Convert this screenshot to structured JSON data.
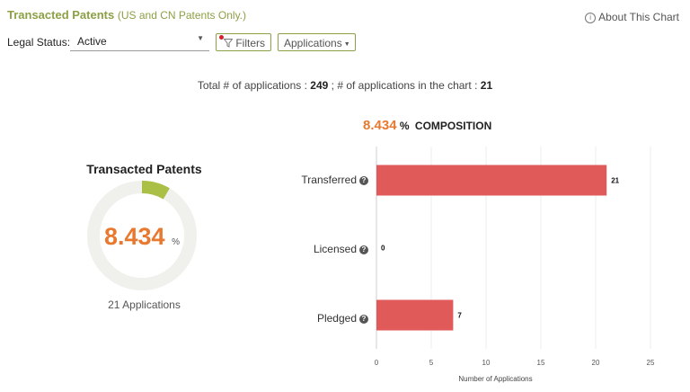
{
  "header": {
    "title": "Transacted Patents",
    "subtitle": "(US and CN Patents Only.)",
    "about_label": "About This Chart",
    "about_icon": "info-circle-icon"
  },
  "filters": {
    "legal_status_label": "Legal Status:",
    "legal_status_value": "Active",
    "filters_label": "Filters",
    "applications_label": "Applications"
  },
  "summary": {
    "total_prefix": "Total # of applications : ",
    "total_value": "249",
    "chart_prefix": " ; # of applications in the chart : ",
    "chart_value": "21"
  },
  "gauge": {
    "title": "Transacted Patents",
    "value": "8.434",
    "unit": "%",
    "fraction": 0.08434,
    "applications": "21 Applications",
    "fill_color": "#a9bf45",
    "track_color": "#f0f1ec"
  },
  "composition": {
    "percent": "8.434",
    "unit": "%",
    "label": "COMPOSITION"
  },
  "chart_data": {
    "type": "bar",
    "orientation": "horizontal",
    "categories": [
      "Transferred",
      "Licensed",
      "Pledged"
    ],
    "values": [
      21,
      0,
      7
    ],
    "xlabel": "Number of Applications",
    "xlim": [
      0,
      25
    ],
    "xticks": [
      0,
      5,
      10,
      15,
      20,
      25
    ],
    "bar_color": "#e05a5a",
    "grid": true
  }
}
